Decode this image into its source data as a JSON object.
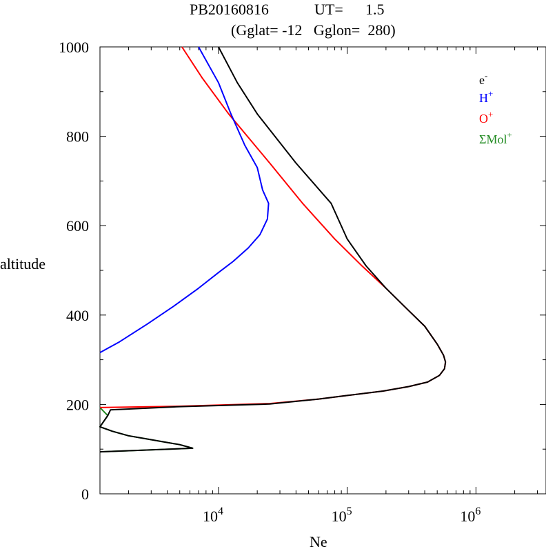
{
  "chart_data": {
    "type": "line",
    "title_line1": {
      "id": "PB20160816",
      "ut_label": "UT=",
      "ut_value": "1.5"
    },
    "title_line2": {
      "text": "(Gglat= -12   Gglon=  280)"
    },
    "xlabel": "Ne",
    "ylabel": "altitude",
    "xscale": "log",
    "xlim": [
      1200,
      3500000
    ],
    "ylim": [
      0,
      1000
    ],
    "x_ticks": [
      {
        "value": 10000,
        "base": "10",
        "exp": "4"
      },
      {
        "value": 100000,
        "base": "10",
        "exp": "5"
      },
      {
        "value": 1000000,
        "base": "10",
        "exp": "6"
      }
    ],
    "y_ticks": [
      0,
      200,
      400,
      600,
      800,
      1000
    ],
    "legend_position": "top-right",
    "series": [
      {
        "name": "e",
        "name_sup": "-",
        "color": "#000000",
        "points": [
          [
            1200,
            94
          ],
          [
            6300,
            102
          ],
          [
            5000,
            110
          ],
          [
            2000,
            130
          ],
          [
            1500,
            140
          ],
          [
            1200,
            150
          ],
          [
            1380,
            175
          ],
          [
            1450,
            188
          ],
          [
            5000,
            195
          ],
          [
            25000,
            201
          ],
          [
            60000,
            212
          ],
          [
            100000,
            220
          ],
          [
            190000,
            230
          ],
          [
            300000,
            240
          ],
          [
            420000,
            250
          ],
          [
            520000,
            265
          ],
          [
            570000,
            280
          ],
          [
            580000,
            295
          ],
          [
            560000,
            310
          ],
          [
            500000,
            335
          ],
          [
            400000,
            375
          ],
          [
            300000,
            410
          ],
          [
            200000,
            460
          ],
          [
            140000,
            510
          ],
          [
            100000,
            570
          ],
          [
            75000,
            650
          ],
          [
            40000,
            740
          ],
          [
            20000,
            850
          ],
          [
            14000,
            920
          ],
          [
            10000,
            1000
          ]
        ]
      },
      {
        "name": "H",
        "name_sup": "+",
        "color": "#0000ff",
        "points": [
          [
            1200,
            316
          ],
          [
            1700,
            340
          ],
          [
            2800,
            380
          ],
          [
            4500,
            420
          ],
          [
            7000,
            460
          ],
          [
            10000,
            495
          ],
          [
            13000,
            520
          ],
          [
            17000,
            550
          ],
          [
            21000,
            580
          ],
          [
            24000,
            615
          ],
          [
            24500,
            650
          ],
          [
            22000,
            680
          ],
          [
            20000,
            730
          ],
          [
            16000,
            780
          ],
          [
            12500,
            850
          ],
          [
            10000,
            920
          ],
          [
            7000,
            1000
          ]
        ]
      },
      {
        "name": "O",
        "name_sup": "+",
        "color": "#ff0000",
        "points": [
          [
            1200,
            193
          ],
          [
            5000,
            196
          ],
          [
            25000,
            202
          ],
          [
            60000,
            212
          ],
          [
            100000,
            220
          ],
          [
            190000,
            230
          ],
          [
            300000,
            240
          ],
          [
            420000,
            250
          ],
          [
            520000,
            265
          ],
          [
            570000,
            280
          ],
          [
            580000,
            295
          ],
          [
            560000,
            310
          ],
          [
            500000,
            335
          ],
          [
            400000,
            375
          ],
          [
            300000,
            410
          ],
          [
            200000,
            460
          ],
          [
            130000,
            510
          ],
          [
            80000,
            570
          ],
          [
            45000,
            650
          ],
          [
            25000,
            740
          ],
          [
            12000,
            850
          ],
          [
            7500,
            930
          ],
          [
            5200,
            1000
          ]
        ]
      },
      {
        "name": "ΣMol",
        "name_sup": "+",
        "color": "#228b22",
        "points": [
          [
            1200,
            94
          ],
          [
            6300,
            102
          ],
          [
            5000,
            110
          ],
          [
            2000,
            130
          ],
          [
            1500,
            140
          ],
          [
            1200,
            150
          ],
          [
            1380,
            175
          ],
          [
            1200,
            193
          ]
        ]
      }
    ]
  }
}
